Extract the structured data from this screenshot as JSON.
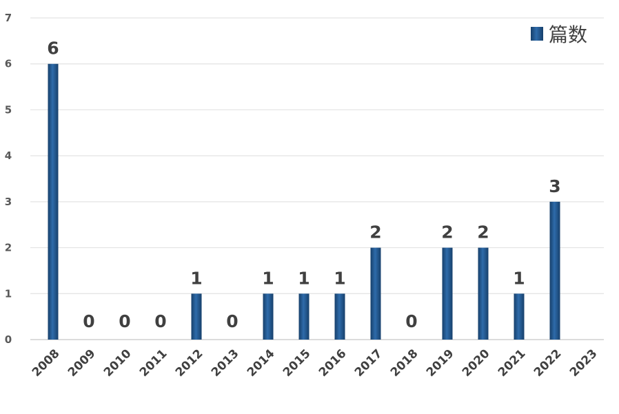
{
  "chart_data": {
    "type": "bar",
    "categories": [
      "2008",
      "2009",
      "2010",
      "2011",
      "2012",
      "2013",
      "2014",
      "2015",
      "2016",
      "2017",
      "2018",
      "2019",
      "2020",
      "2021",
      "2022",
      "2023"
    ],
    "series": [
      {
        "name": "篇数",
        "values": [
          6,
          0,
          0,
          0,
          1,
          0,
          1,
          1,
          1,
          2,
          0,
          2,
          2,
          1,
          3,
          null
        ]
      }
    ],
    "data_labels": [
      "6",
      "0",
      "0",
      "0",
      "1",
      "0",
      "1",
      "1",
      "1",
      "2",
      "0",
      "2",
      "2",
      "1",
      "3",
      ""
    ],
    "ylim": [
      0,
      7
    ],
    "yticks": [
      0,
      1,
      2,
      3,
      4,
      5,
      6,
      7
    ],
    "grid": true,
    "legend_position": "top-right",
    "bar_color": "#2E6BAA",
    "bar_color_dark": "#17406B"
  }
}
